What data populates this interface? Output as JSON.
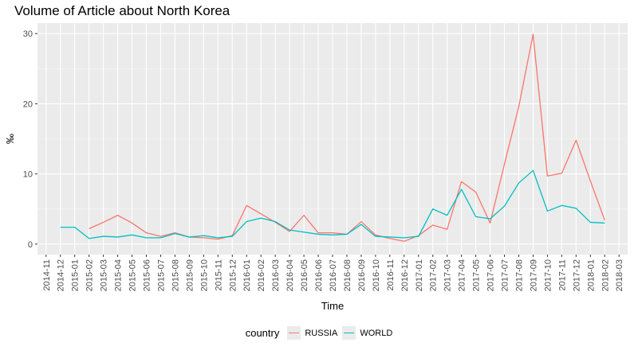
{
  "chart_data": {
    "type": "line",
    "title": "Volume of Article about North Korea",
    "xlabel": "Time",
    "ylabel": "‰",
    "ylim": [
      -1.5,
      31.5
    ],
    "y_ticks": [
      0,
      10,
      20,
      30
    ],
    "grid": true,
    "legend_position": "bottom",
    "legend_title": "country",
    "x": [
      "2014-11",
      "2014-12",
      "2015-01",
      "2015-02",
      "2015-03",
      "2015-04",
      "2015-05",
      "2015-06",
      "2015-07",
      "2015-08",
      "2015-09",
      "2015-10",
      "2015-11",
      "2015-12",
      "2016-01",
      "2016-02",
      "2016-03",
      "2016-04",
      "2016-05",
      "2016-06",
      "2016-07",
      "2016-08",
      "2016-09",
      "2016-10",
      "2016-11",
      "2016-12",
      "2017-01",
      "2017-02",
      "2017-03",
      "2017-04",
      "2017-05",
      "2017-06",
      "2017-07",
      "2017-08",
      "2017-09",
      "2017-10",
      "2017-11",
      "2017-12",
      "2018-01",
      "2018-02",
      "2018-03"
    ],
    "series": [
      {
        "name": "RUSSIA",
        "color": "#F8766D",
        "values": [
          null,
          null,
          null,
          2.2,
          3.1,
          4.1,
          3.0,
          1.6,
          1.1,
          1.6,
          1.0,
          0.9,
          0.7,
          1.2,
          5.5,
          4.3,
          3.1,
          1.8,
          4.1,
          1.6,
          1.6,
          1.4,
          3.2,
          1.3,
          0.8,
          0.4,
          1.2,
          2.7,
          2.1,
          8.9,
          7.4,
          3.0,
          11.4,
          19.6,
          29.9,
          9.7,
          10.1,
          14.8,
          9.0,
          3.4,
          null
        ]
      },
      {
        "name": "WORLD",
        "color": "#00BFC4",
        "values": [
          null,
          2.4,
          2.4,
          0.8,
          1.1,
          1.0,
          1.3,
          0.9,
          0.9,
          1.5,
          1.0,
          1.2,
          0.9,
          1.1,
          3.2,
          3.7,
          3.2,
          2.0,
          1.7,
          1.4,
          1.3,
          1.4,
          2.8,
          1.1,
          1.0,
          0.9,
          1.1,
          5.0,
          4.1,
          7.8,
          3.9,
          3.6,
          5.4,
          8.7,
          10.5,
          4.7,
          5.5,
          5.1,
          3.1,
          3.0,
          null
        ]
      }
    ]
  }
}
